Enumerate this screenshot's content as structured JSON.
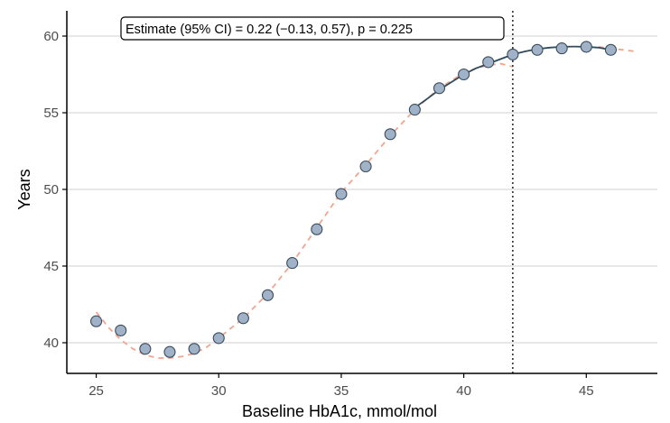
{
  "chart_data": {
    "type": "scatter",
    "xlabel": "Baseline HbA1c, mmol/mol",
    "ylabel": "Years",
    "xlim": [
      23.8,
      47.9
    ],
    "ylim": [
      38.0,
      62.0
    ],
    "x_ticks": [
      25,
      30,
      35,
      40,
      45
    ],
    "y_ticks": [
      40,
      45,
      50,
      55,
      60
    ],
    "grid": "horizontal",
    "annotation": "Estimate (95% CI) = 0.22 (−0.13, 0.57), p = 0.225",
    "reference_line_x": 42,
    "points": {
      "x": [
        25,
        26,
        27,
        28,
        29,
        30,
        31,
        32,
        33,
        34,
        35,
        36,
        37,
        38,
        39,
        40,
        41,
        42,
        43,
        44,
        45,
        46
      ],
      "y": [
        41.4,
        40.8,
        39.6,
        39.4,
        39.6,
        40.3,
        41.6,
        43.1,
        45.2,
        47.4,
        49.7,
        51.5,
        53.6,
        55.2,
        56.6,
        57.5,
        58.3,
        58.8,
        59.1,
        59.2,
        59.3,
        59.1
      ]
    },
    "dashed_curve": {
      "x": [
        25,
        25.5,
        26,
        26.5,
        27,
        27.5,
        28,
        28.5,
        29,
        29.5,
        30,
        31,
        32,
        33,
        34,
        35,
        36,
        37,
        38,
        39,
        40,
        40.5,
        41,
        41.5,
        42
      ],
      "y": [
        42.0,
        41.0,
        40.2,
        39.6,
        39.2,
        39.0,
        39.0,
        39.1,
        39.3,
        39.7,
        40.3,
        41.6,
        43.2,
        45.2,
        47.5,
        49.8,
        51.6,
        53.5,
        55.2,
        56.6,
        57.6,
        57.9,
        58.1,
        58.2,
        58.0
      ]
    },
    "dashed_tail": {
      "x": [
        45.5,
        46,
        46.5,
        47
      ],
      "y": [
        59.3,
        59.2,
        59.1,
        59.0
      ]
    },
    "solid_curve": {
      "x": [
        37.8,
        38.5,
        39,
        39.5,
        40,
        40.5,
        41,
        41.5,
        42,
        42.5,
        43,
        43.5,
        44,
        44.5,
        45,
        45.5,
        46
      ],
      "y": [
        55.1,
        55.9,
        56.5,
        57.0,
        57.5,
        57.9,
        58.2,
        58.5,
        58.8,
        59.0,
        59.15,
        59.25,
        59.3,
        59.32,
        59.3,
        59.25,
        59.1
      ]
    },
    "colors": {
      "point_fill": "#9fb2c8",
      "point_stroke": "#3a4a5a",
      "dashed_curve": "#f2a58e",
      "solid_curve": "#2e4a5c",
      "grid": "#d9d9d9",
      "axis": "#000000"
    }
  }
}
